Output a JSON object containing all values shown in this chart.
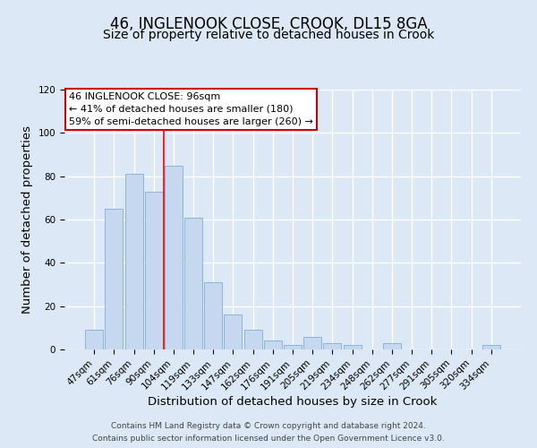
{
  "title": "46, INGLENOOK CLOSE, CROOK, DL15 8GA",
  "subtitle": "Size of property relative to detached houses in Crook",
  "xlabel": "Distribution of detached houses by size in Crook",
  "ylabel": "Number of detached properties",
  "bar_labels": [
    "47sqm",
    "61sqm",
    "76sqm",
    "90sqm",
    "104sqm",
    "119sqm",
    "133sqm",
    "147sqm",
    "162sqm",
    "176sqm",
    "191sqm",
    "205sqm",
    "219sqm",
    "234sqm",
    "248sqm",
    "262sqm",
    "277sqm",
    "291sqm",
    "305sqm",
    "320sqm",
    "334sqm"
  ],
  "bar_values": [
    9,
    65,
    81,
    73,
    85,
    61,
    31,
    16,
    9,
    4,
    2,
    6,
    3,
    2,
    0,
    3,
    0,
    0,
    0,
    0,
    2
  ],
  "bar_color": "#c5d8f0",
  "bar_edge_color": "#8ab4d8",
  "ylim": [
    0,
    120
  ],
  "yticks": [
    0,
    20,
    40,
    60,
    80,
    100,
    120
  ],
  "red_line_x": 3.5,
  "annotation_title": "46 INGLENOOK CLOSE: 96sqm",
  "annotation_line1": "← 41% of detached houses are smaller (180)",
  "annotation_line2": "59% of semi-detached houses are larger (260) →",
  "annotation_box_color": "#ffffff",
  "annotation_box_edge": "#cc0000",
  "footer1": "Contains HM Land Registry data © Crown copyright and database right 2024.",
  "footer2": "Contains public sector information licensed under the Open Government Licence v3.0.",
  "background_color": "#dce8f5",
  "plot_background": "#dce8f5",
  "grid_color": "#ffffff",
  "title_fontsize": 12,
  "subtitle_fontsize": 10,
  "axis_label_fontsize": 9.5,
  "tick_fontsize": 7.5,
  "annotation_fontsize": 8,
  "footer_fontsize": 6.5
}
